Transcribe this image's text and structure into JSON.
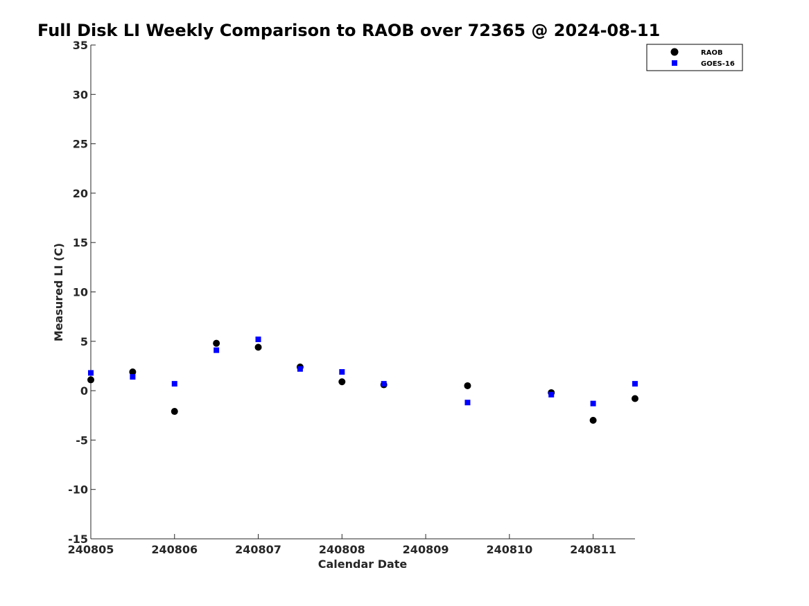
{
  "chart_data": {
    "type": "scatter",
    "title": "Full Disk LI Weekly Comparison to RAOB over 72365 @ 2024-08-11",
    "xlabel": "Calendar Date",
    "ylabel": "Measured LI (C)",
    "xlim": [
      240805,
      240811.5
    ],
    "ylim": [
      -15,
      35
    ],
    "xticks": [
      240805,
      240806,
      240807,
      240808,
      240809,
      240810,
      240811
    ],
    "xtick_labels": [
      "240805",
      "240806",
      "240807",
      "240808",
      "240809",
      "240810",
      "240811"
    ],
    "yticks": [
      -15,
      -10,
      -5,
      0,
      5,
      10,
      15,
      20,
      25,
      30,
      35
    ],
    "ytick_labels": [
      "-15",
      "-10",
      "-5",
      "0",
      "5",
      "10",
      "15",
      "20",
      "25",
      "30",
      "35"
    ],
    "grid": false,
    "legend_position": "top-right",
    "series": [
      {
        "name": "RAOB",
        "marker": "circle",
        "color": "#000000",
        "points": [
          {
            "x": 240805.0,
            "y": 1.1
          },
          {
            "x": 240805.5,
            "y": 1.9
          },
          {
            "x": 240806.0,
            "y": -2.1
          },
          {
            "x": 240806.5,
            "y": 4.8
          },
          {
            "x": 240807.0,
            "y": 4.4
          },
          {
            "x": 240807.5,
            "y": 2.4
          },
          {
            "x": 240808.0,
            "y": 0.9
          },
          {
            "x": 240808.5,
            "y": 0.6
          },
          {
            "x": 240809.5,
            "y": 0.5
          },
          {
            "x": 240810.5,
            "y": -0.2
          },
          {
            "x": 240811.0,
            "y": -3.0
          },
          {
            "x": 240811.5,
            "y": -0.8
          }
        ]
      },
      {
        "name": "GOES-16",
        "marker": "square",
        "color": "#0000ff",
        "points": [
          {
            "x": 240805.0,
            "y": 1.8
          },
          {
            "x": 240805.5,
            "y": 1.4
          },
          {
            "x": 240806.0,
            "y": 0.7
          },
          {
            "x": 240806.5,
            "y": 4.1
          },
          {
            "x": 240807.0,
            "y": 5.2
          },
          {
            "x": 240807.5,
            "y": 2.2
          },
          {
            "x": 240808.0,
            "y": 1.9
          },
          {
            "x": 240808.5,
            "y": 0.7
          },
          {
            "x": 240809.5,
            "y": -1.2
          },
          {
            "x": 240810.5,
            "y": -0.4
          },
          {
            "x": 240811.0,
            "y": -1.3
          },
          {
            "x": 240811.5,
            "y": 0.7
          }
        ]
      }
    ]
  }
}
